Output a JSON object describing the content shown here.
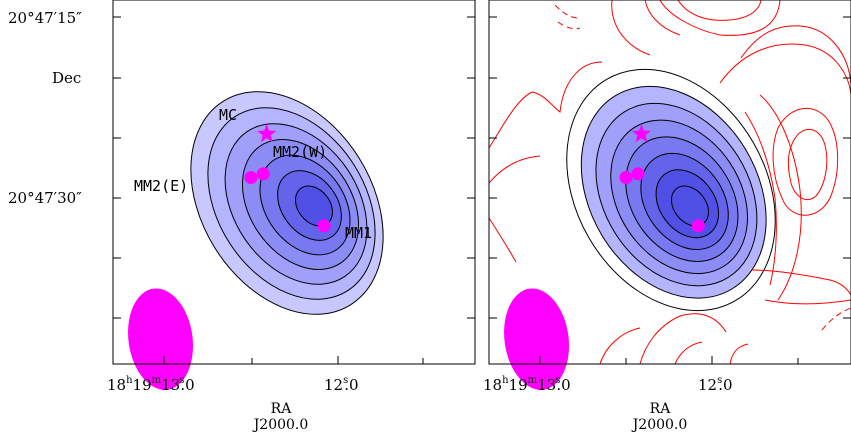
{
  "colors": {
    "fill_levels": [
      "#c8c8ff",
      "#b4b4ff",
      "#a0a0fa",
      "#8c8cf5",
      "#7878f0",
      "#6464eb",
      "#5050e6"
    ],
    "marker": "#ff00ff",
    "outline": "#000000",
    "red_contour": "#ff0000"
  },
  "chart_data": [
    {
      "type": "contour",
      "title": "",
      "xlabel": "RA",
      "xlabel2": "J2000.0",
      "ylabel": "Dec",
      "x_ticks": [
        {
          "label": "18h19m13s.0",
          "value_s": 13.0,
          "main": "18",
          "h": "h",
          "mid": "19",
          "m": "m",
          "sec": "13",
          "s": "s",
          "frac": ".0"
        },
        {
          "label": "12s.0",
          "value_s": 12.0,
          "main": "12",
          "s": "s",
          "frac": ".0"
        }
      ],
      "y_ticks": [
        {
          "label": "20°47′15″",
          "value_arcsec": 15
        },
        {
          "label": "20°47′30″",
          "value_arcsec": 30
        }
      ],
      "contour_levels": 7,
      "annotations": [
        {
          "text": "MC",
          "kind": "star",
          "ra_s": 12.41,
          "dec_arcsec": 24.7
        },
        {
          "text": "MM2(W)",
          "kind": "circle",
          "ra_s": 12.43,
          "dec_arcsec": 28.0
        },
        {
          "text": "MM2(E)",
          "kind": "circle",
          "ra_s": 12.5,
          "dec_arcsec": 28.3
        },
        {
          "text": "MM1",
          "kind": "circle",
          "ra_s": 12.08,
          "dec_arcsec": 32.3
        }
      ],
      "beam": {
        "ra_s": 13.02,
        "dec_arcsec": 41.7
      }
    },
    {
      "type": "contour",
      "title": "",
      "xlabel": "RA",
      "xlabel2": "J2000.0",
      "ylabel": "",
      "x_ticks": [
        {
          "label": "18h19m13s.0",
          "value_s": 13.0,
          "main": "18",
          "h": "h",
          "mid": "19",
          "m": "m",
          "sec": "13",
          "s": "s",
          "frac": ".0"
        },
        {
          "label": "12s.0",
          "value_s": 12.0,
          "main": "12",
          "s": "s",
          "frac": ".0"
        }
      ],
      "contour_levels": 8,
      "red_contours": true,
      "annotations": [
        {
          "text": "",
          "kind": "star",
          "ra_s": 12.41,
          "dec_arcsec": 24.7
        },
        {
          "text": "",
          "kind": "circle",
          "ra_s": 12.43,
          "dec_arcsec": 28.0
        },
        {
          "text": "",
          "kind": "circle",
          "ra_s": 12.5,
          "dec_arcsec": 28.3
        },
        {
          "text": "",
          "kind": "circle",
          "ra_s": 12.08,
          "dec_arcsec": 32.3
        }
      ],
      "beam": {
        "ra_s": 13.02,
        "dec_arcsec": 41.7
      }
    }
  ]
}
